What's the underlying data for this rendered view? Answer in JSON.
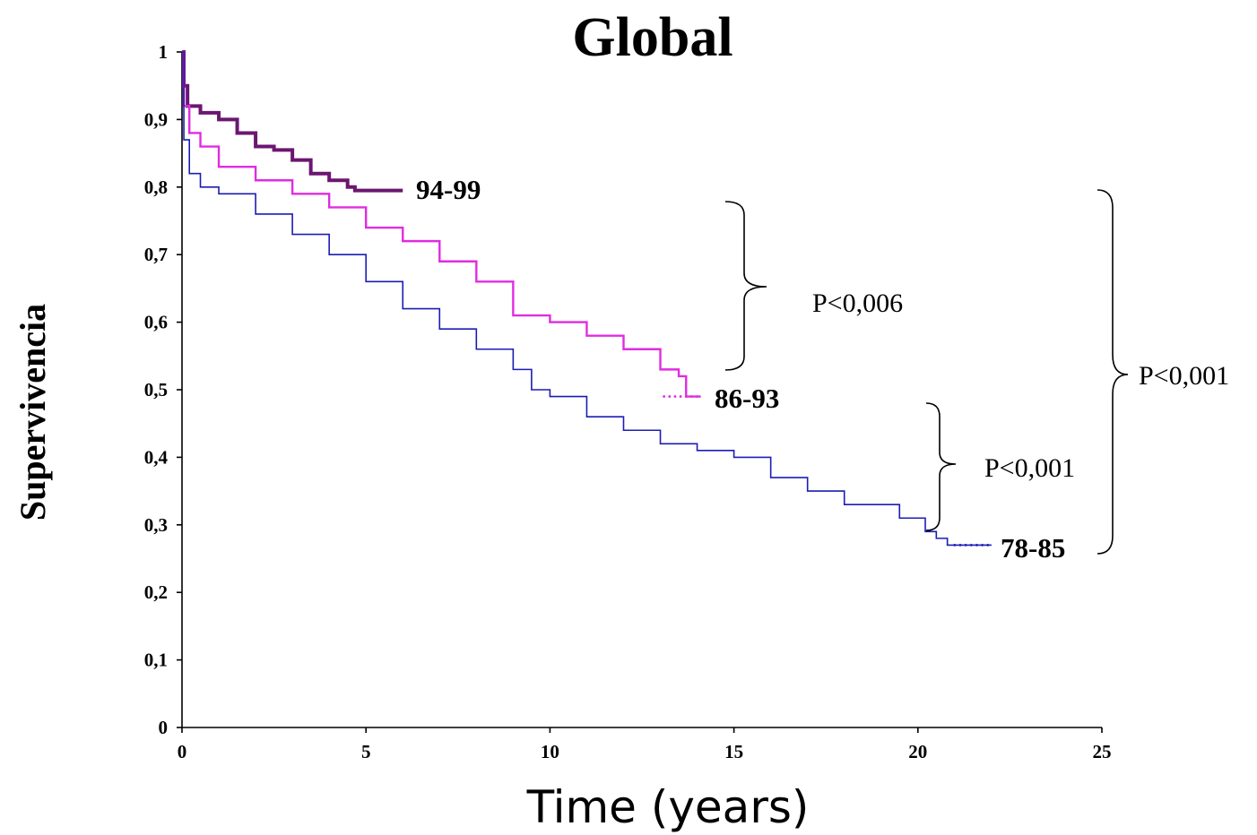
{
  "chart_data": {
    "type": "line",
    "title": "Global",
    "xlabel": "Time (years)",
    "ylabel": "Supervivencia",
    "xlim": [
      0,
      25
    ],
    "ylim": [
      0,
      1
    ],
    "x_ticks": [
      "0",
      "5",
      "10",
      "15",
      "20",
      "25"
    ],
    "y_ticks": [
      "0",
      "0,1",
      "0,2",
      "0,3",
      "0,4",
      "0,5",
      "0,6",
      "0,7",
      "0,8",
      "0,9",
      "1"
    ],
    "grid": false,
    "series": [
      {
        "name": "94-99",
        "color": "#6b1670",
        "points": [
          [
            0,
            1
          ],
          [
            0.05,
            0.95
          ],
          [
            0.15,
            0.92
          ],
          [
            0.5,
            0.91
          ],
          [
            1,
            0.9
          ],
          [
            1.5,
            0.88
          ],
          [
            2,
            0.86
          ],
          [
            2.5,
            0.855
          ],
          [
            3,
            0.84
          ],
          [
            3.5,
            0.82
          ],
          [
            4,
            0.81
          ],
          [
            4.5,
            0.8
          ],
          [
            4.7,
            0.795
          ],
          [
            5,
            0.795
          ],
          [
            6,
            0.795
          ]
        ]
      },
      {
        "name": "86-93",
        "color": "#e02ce0",
        "points": [
          [
            0,
            1
          ],
          [
            0.05,
            0.92
          ],
          [
            0.2,
            0.88
          ],
          [
            0.5,
            0.86
          ],
          [
            1,
            0.83
          ],
          [
            2,
            0.81
          ],
          [
            3,
            0.79
          ],
          [
            4,
            0.77
          ],
          [
            5,
            0.74
          ],
          [
            6,
            0.72
          ],
          [
            7,
            0.69
          ],
          [
            8,
            0.66
          ],
          [
            9,
            0.61
          ],
          [
            10,
            0.6
          ],
          [
            11,
            0.58
          ],
          [
            12,
            0.56
          ],
          [
            13,
            0.53
          ],
          [
            13.5,
            0.52
          ],
          [
            13.7,
            0.49
          ],
          [
            14.1,
            0.49
          ]
        ]
      },
      {
        "name": "78-85",
        "color": "#1c1cb4",
        "points": [
          [
            0,
            1
          ],
          [
            0.05,
            0.87
          ],
          [
            0.2,
            0.82
          ],
          [
            0.5,
            0.8
          ],
          [
            1,
            0.79
          ],
          [
            2,
            0.76
          ],
          [
            3,
            0.73
          ],
          [
            4,
            0.7
          ],
          [
            5,
            0.66
          ],
          [
            6,
            0.62
          ],
          [
            7,
            0.59
          ],
          [
            8,
            0.56
          ],
          [
            9,
            0.53
          ],
          [
            9.5,
            0.5
          ],
          [
            10,
            0.49
          ],
          [
            11,
            0.46
          ],
          [
            12,
            0.44
          ],
          [
            13,
            0.42
          ],
          [
            14,
            0.41
          ],
          [
            15,
            0.4
          ],
          [
            16,
            0.37
          ],
          [
            17,
            0.35
          ],
          [
            18,
            0.33
          ],
          [
            19,
            0.33
          ],
          [
            19.5,
            0.31
          ],
          [
            20,
            0.31
          ],
          [
            20.2,
            0.29
          ],
          [
            20.5,
            0.28
          ],
          [
            20.8,
            0.27
          ],
          [
            22,
            0.27
          ]
        ]
      }
    ],
    "annotations": [
      {
        "text": "P<0,006",
        "between": [
          "94-99",
          "86-93"
        ]
      },
      {
        "text": "P<0,001",
        "between": [
          "86-93",
          "78-85"
        ]
      },
      {
        "text": "P<0,001",
        "between": [
          "94-99",
          "78-85"
        ]
      }
    ]
  }
}
